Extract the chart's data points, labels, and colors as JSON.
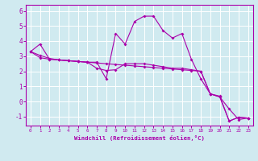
{
  "background_color": "#d0eaf0",
  "line_color": "#aa00aa",
  "grid_color": "#ffffff",
  "xlabel": "Windchill (Refroidissement éolien,°C)",
  "xlabel_color": "#aa00aa",
  "tick_color": "#aa00aa",
  "xlim": [
    -0.5,
    23.5
  ],
  "ylim": [
    -1.6,
    6.4
  ],
  "yticks": [
    -1,
    0,
    1,
    2,
    3,
    4,
    5,
    6
  ],
  "xticks": [
    0,
    1,
    2,
    3,
    4,
    5,
    6,
    7,
    8,
    9,
    10,
    11,
    12,
    13,
    14,
    15,
    16,
    17,
    18,
    19,
    20,
    21,
    22,
    23
  ],
  "line1_x": [
    0,
    1,
    2,
    3,
    4,
    5,
    6,
    7,
    8,
    9,
    10,
    11,
    12,
    13,
    14,
    15,
    16,
    17,
    18,
    19,
    20,
    21,
    22,
    23
  ],
  "line1_y": [
    3.3,
    2.9,
    2.8,
    2.75,
    2.7,
    2.65,
    2.6,
    2.2,
    2.05,
    2.1,
    2.5,
    2.5,
    2.5,
    2.4,
    2.3,
    2.2,
    2.2,
    2.1,
    2.0,
    0.5,
    0.3,
    -1.3,
    -1.05,
    -1.1
  ],
  "line2_x": [
    0,
    1,
    2,
    3,
    4,
    5,
    6,
    7,
    8,
    9,
    10,
    11,
    12,
    13,
    14,
    15,
    16,
    17,
    18,
    19,
    20,
    21,
    22,
    23
  ],
  "line2_y": [
    3.3,
    3.8,
    2.8,
    2.75,
    2.7,
    2.65,
    2.6,
    2.6,
    1.5,
    4.5,
    3.8,
    5.3,
    5.65,
    5.65,
    4.7,
    4.2,
    4.5,
    2.8,
    1.5,
    0.5,
    0.35,
    -1.3,
    -1.05,
    -1.1
  ],
  "line3_x": [
    0,
    1,
    2,
    3,
    4,
    5,
    6,
    7,
    8,
    9,
    10,
    11,
    12,
    13,
    14,
    15,
    16,
    17,
    18,
    19,
    20,
    21,
    22,
    23
  ],
  "line3_y": [
    3.3,
    3.05,
    2.85,
    2.75,
    2.7,
    2.65,
    2.6,
    2.55,
    2.5,
    2.45,
    2.4,
    2.35,
    2.3,
    2.25,
    2.2,
    2.15,
    2.1,
    2.05,
    2.0,
    0.5,
    0.3,
    -0.5,
    -1.2,
    -1.1
  ]
}
